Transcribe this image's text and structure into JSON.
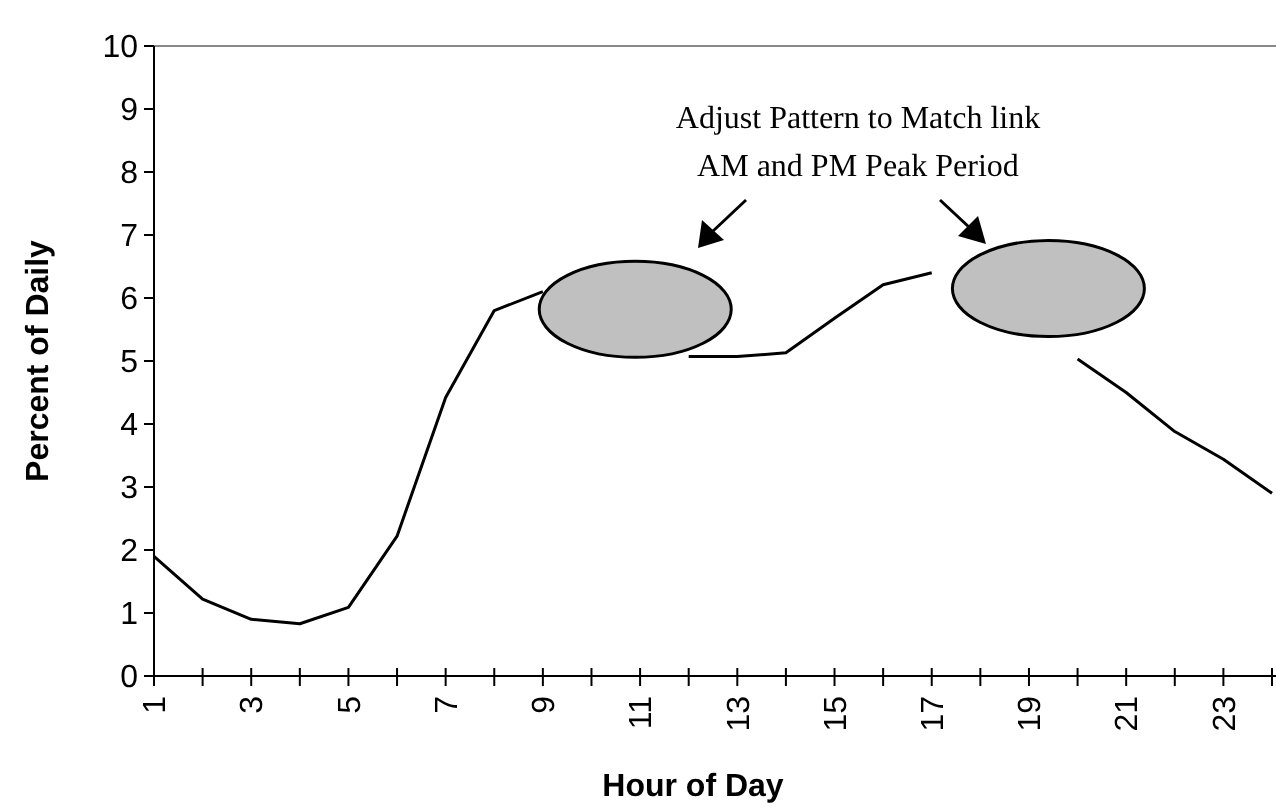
{
  "chart_data": {
    "type": "line",
    "xlabel": "Hour of Day",
    "ylabel": "Percent of Daily",
    "categories": [
      "1",
      null,
      "3",
      null,
      "5",
      null,
      "7",
      null,
      "9",
      null,
      "11",
      null,
      "13",
      null,
      "15",
      null,
      "17",
      null,
      "19",
      null,
      "21",
      null,
      "23",
      null
    ],
    "series": [
      {
        "color": "#000000",
        "values": [
          1.9,
          1.22,
          0.9,
          0.83,
          1.09,
          2.22,
          4.42,
          5.8,
          6.1,
          null,
          null,
          5.07,
          5.07,
          5.13,
          5.68,
          6.21,
          6.4,
          null,
          null,
          5.03,
          4.5,
          3.88,
          3.44,
          2.9
        ]
      }
    ],
    "ylim": [
      0,
      10
    ],
    "yticks": [
      0,
      1,
      2,
      3,
      4,
      5,
      6,
      7,
      8,
      9,
      10
    ],
    "grid": false,
    "marker": "none",
    "line_style": "solid",
    "annotations": [
      "Adjust Pattern to Match link AM and PM Peak Period"
    ]
  }
}
